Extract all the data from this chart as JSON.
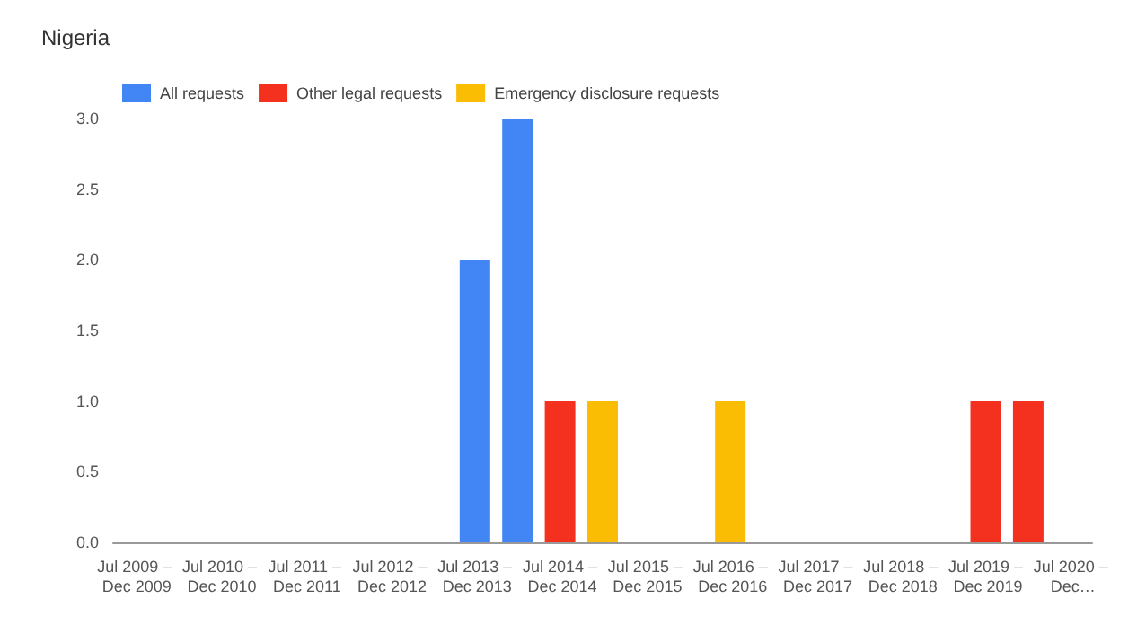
{
  "chart_data": {
    "type": "bar",
    "title": "Nigeria",
    "stacked": true,
    "legend": "top",
    "grid": false,
    "categories": [
      "Jul 2009 – Dec 2009",
      null,
      "Jul 2010 – Dec 2010",
      null,
      "Jul 2011 – Dec 2011",
      null,
      "Jul 2012 – Dec 2012",
      null,
      "Jul 2013 – Dec 2013",
      null,
      "Jul 2014 – Dec 2014",
      null,
      "Jul 2015 – Dec 2015",
      null,
      "Jul 2016 – Dec 2016",
      null,
      "Jul 2017 – Dec 2017",
      null,
      "Jul 2018 – Dec 2018",
      null,
      "Jul 2019 – Dec 2019",
      null,
      "Jul 2020 – Dec…"
    ],
    "series": [
      {
        "name": "All requests",
        "color": "#4285f4",
        "values": [
          null,
          null,
          null,
          null,
          null,
          null,
          null,
          null,
          2,
          3,
          null,
          null,
          null,
          null,
          null,
          null,
          null,
          null,
          null,
          null,
          null,
          null,
          null
        ]
      },
      {
        "name": "Other legal requests",
        "color": "#f4311f",
        "values": [
          null,
          null,
          null,
          null,
          null,
          null,
          null,
          null,
          null,
          null,
          1,
          null,
          null,
          null,
          null,
          null,
          null,
          null,
          null,
          null,
          1,
          1,
          null
        ]
      },
      {
        "name": "Emergency disclosure requests",
        "color": "#fbbc04",
        "values": [
          null,
          null,
          null,
          null,
          null,
          null,
          null,
          null,
          null,
          null,
          null,
          1,
          null,
          null,
          1,
          null,
          null,
          null,
          null,
          null,
          null,
          null,
          null
        ]
      }
    ],
    "ylim": [
      0,
      3
    ],
    "yticks": [
      {
        "value": 0,
        "label": "0.0"
      },
      {
        "value": 0.5,
        "label": "0.5"
      },
      {
        "value": 1,
        "label": "1.0"
      },
      {
        "value": 1.5,
        "label": "1.5"
      },
      {
        "value": 2,
        "label": "2.0"
      },
      {
        "value": 2.5,
        "label": "2.5"
      },
      {
        "value": 3,
        "label": "3.0"
      }
    ]
  }
}
